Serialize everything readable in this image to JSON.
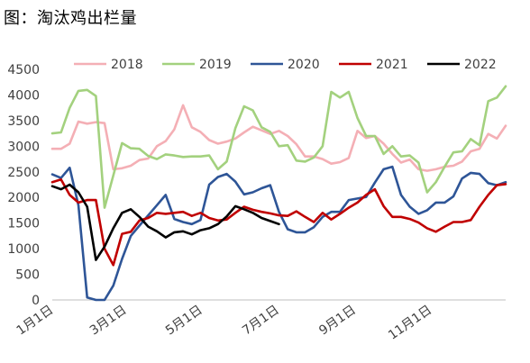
{
  "title": "图：淘汰鸡出栏量",
  "chart_data": {
    "type": "line",
    "title": "图：淘汰鸡出栏量",
    "xlabel": "",
    "ylabel": "",
    "ylim": [
      0,
      4500
    ],
    "yticks": [
      0,
      500,
      1000,
      1500,
      2000,
      2500,
      3000,
      3500,
      4000,
      4500
    ],
    "x_ticks": [
      {
        "label": "1月1日",
        "week": 1
      },
      {
        "label": "3月1日",
        "week": 9.4
      },
      {
        "label": "5月1日",
        "week": 18.1
      },
      {
        "label": "7月1日",
        "week": 26.9
      },
      {
        "label": "9月1日",
        "week": 35.7
      },
      {
        "label": "11月1日",
        "week": 44.4
      }
    ],
    "x_range": [
      1,
      53
    ],
    "grid": false,
    "legend_position": "top",
    "series": [
      {
        "name": "2018",
        "color": "#F4AFB5",
        "values": [
          2950,
          2950,
          3050,
          3480,
          3440,
          3470,
          3450,
          2550,
          2570,
          2620,
          2730,
          2760,
          3000,
          3100,
          3330,
          3800,
          3370,
          3280,
          3120,
          3050,
          3090,
          3150,
          3270,
          3380,
          3310,
          3240,
          3300,
          3200,
          3040,
          2800,
          2800,
          2750,
          2660,
          2690,
          2770,
          3300,
          3160,
          3200,
          3050,
          2850,
          2680,
          2740,
          2550,
          2520,
          2550,
          2600,
          2620,
          2700,
          2900,
          2950,
          3240,
          3150,
          3400
        ]
      },
      {
        "name": "2019",
        "color": "#A3D17E",
        "values": [
          3250,
          3270,
          3750,
          4080,
          4100,
          3980,
          1800,
          2430,
          3060,
          2960,
          2950,
          2810,
          2750,
          2840,
          2820,
          2790,
          2800,
          2800,
          2820,
          2550,
          2700,
          3350,
          3780,
          3700,
          3370,
          3280,
          3000,
          3020,
          2720,
          2700,
          2780,
          3000,
          4060,
          3950,
          4060,
          3550,
          3200,
          3200,
          2850,
          3000,
          2800,
          2820,
          2680,
          2100,
          2300,
          2600,
          2880,
          2900,
          3140,
          3020,
          3880,
          3950,
          4170
        ]
      },
      {
        "name": "2020",
        "color": "#2E5597",
        "values": [
          2450,
          2380,
          2580,
          1850,
          50,
          0,
          0,
          280,
          800,
          1250,
          1450,
          1650,
          1850,
          2050,
          1580,
          1520,
          1480,
          1560,
          2250,
          2400,
          2460,
          2310,
          2060,
          2100,
          2180,
          2240,
          1720,
          1380,
          1320,
          1320,
          1420,
          1620,
          1720,
          1720,
          1950,
          1980,
          2010,
          2290,
          2550,
          2600,
          2050,
          1820,
          1680,
          1750,
          1900,
          1900,
          2020,
          2370,
          2480,
          2460,
          2280,
          2240,
          2300
        ]
      },
      {
        "name": "2021",
        "color": "#C00000",
        "values": [
          2300,
          2350,
          2050,
          1900,
          1950,
          1950,
          1000,
          680,
          1290,
          1330,
          1550,
          1600,
          1700,
          1680,
          1700,
          1720,
          1640,
          1700,
          1600,
          1550,
          1570,
          1700,
          1820,
          1760,
          1720,
          1690,
          1650,
          1640,
          1730,
          1620,
          1520,
          1700,
          1570,
          1680,
          1800,
          1900,
          2050,
          2160,
          1830,
          1620,
          1620,
          1580,
          1510,
          1400,
          1330,
          1430,
          1520,
          1520,
          1560,
          1820,
          2050,
          2240,
          2260
        ]
      },
      {
        "name": "2022",
        "color": "#000000",
        "values": [
          2220,
          2160,
          2250,
          2100,
          1820,
          780,
          1040,
          1400,
          1700,
          1770,
          1620,
          1430,
          1340,
          1220,
          1320,
          1340,
          1280,
          1360,
          1400,
          1480,
          1630,
          1830,
          1770,
          1700,
          1600,
          1540,
          1480,
          null,
          null,
          null,
          null,
          null,
          null,
          null,
          null,
          null,
          null,
          null,
          null,
          null,
          null,
          null,
          null,
          null,
          null,
          null,
          null,
          null,
          null,
          null,
          null,
          null,
          null
        ]
      }
    ]
  }
}
